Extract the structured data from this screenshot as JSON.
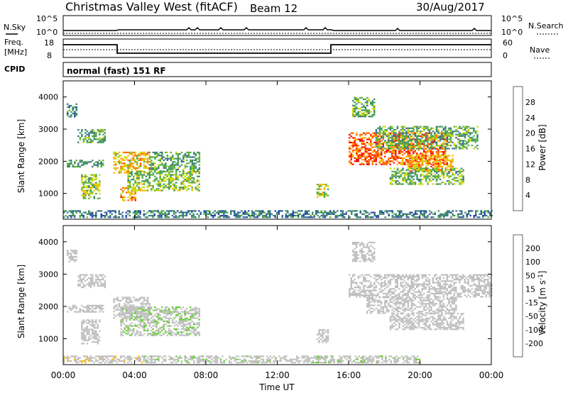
{
  "header": {
    "title": "Christmas Valley West (fitACF)",
    "beam": "Beam 12",
    "date": "30/Aug/2017"
  },
  "panels": {
    "nsky_label": "N.Sky",
    "nsky_ticks": [
      "10^5",
      "10^0"
    ],
    "nsearch_label": "N.Search",
    "nsearch_ticks": [
      "10^5",
      "10^0"
    ],
    "freq_label_1": "Freq.",
    "freq_label_2": "[MHz]",
    "freq_ticks": [
      "18",
      "8"
    ],
    "nave_label": "Nave",
    "nave_ticks": [
      "60",
      "0"
    ],
    "cpid_label": "CPID",
    "cpid_text": "normal (fast) 151 RF"
  },
  "colors": {
    "power_scale": [
      "#0000ee",
      "#2244aa",
      "#3a7090",
      "#3a9060",
      "#55b040",
      "#c8d800",
      "#ffb000",
      "#ff6000",
      "#ff1000",
      "#e00000"
    ],
    "velocity_scale": [
      "#ff0000",
      "#ff5a00",
      "#ff9e00",
      "#ffc000",
      "#c0c0c0",
      "#c0c0c0",
      "#66cc33",
      "#2a9a40",
      "#2c5fa0",
      "#1a1acc"
    ]
  },
  "chart_data": [
    {
      "type": "heatmap",
      "panel": "power",
      "ylabel": "Slant Range [km]",
      "yticks": [
        "1000",
        "2000",
        "3000",
        "4000"
      ],
      "ylim": [
        200,
        4500
      ],
      "xlim": [
        0,
        24
      ],
      "colorbar_label": "Power [dB]",
      "colorbar_ticks": [
        "4",
        "8",
        "12",
        "16",
        "20",
        "24",
        "28"
      ],
      "colorbar_range": [
        0,
        32
      ],
      "regions": [
        {
          "t": [
            0.2,
            0.7
          ],
          "r": [
            3400,
            3800
          ],
          "v": 9
        },
        {
          "t": [
            0.8,
            2.3
          ],
          "r": [
            2600,
            3000
          ],
          "v": 13
        },
        {
          "t": [
            0.2,
            2.2
          ],
          "r": [
            1850,
            2050
          ],
          "v": 11
        },
        {
          "t": [
            1.0,
            2.0
          ],
          "r": [
            850,
            1600
          ],
          "v": 16
        },
        {
          "t": [
            2.8,
            4.8
          ],
          "r": [
            1650,
            2300
          ],
          "v": 20
        },
        {
          "t": [
            3.2,
            4.0
          ],
          "r": [
            800,
            1200
          ],
          "v": 21
        },
        {
          "t": [
            3.6,
            7.6
          ],
          "r": [
            1100,
            1700
          ],
          "v": 15
        },
        {
          "t": [
            4.8,
            7.6
          ],
          "r": [
            1700,
            2300
          ],
          "v": 12
        },
        {
          "t": [
            14.2,
            14.8
          ],
          "r": [
            900,
            1300
          ],
          "v": 17
        },
        {
          "t": [
            16.2,
            17.4
          ],
          "r": [
            3400,
            4000
          ],
          "v": 14
        },
        {
          "t": [
            16.0,
            21.5
          ],
          "r": [
            1900,
            2900
          ],
          "v": 24
        },
        {
          "t": [
            17.5,
            23.2
          ],
          "r": [
            2400,
            3100
          ],
          "v": 13
        },
        {
          "t": [
            19.3,
            21.8
          ],
          "r": [
            1700,
            2200
          ],
          "v": 22
        },
        {
          "t": [
            18.3,
            22.4
          ],
          "r": [
            1300,
            1800
          ],
          "v": 14
        },
        {
          "t": [
            0.0,
            24.0
          ],
          "r": [
            250,
            480
          ],
          "v": 9
        }
      ]
    },
    {
      "type": "heatmap",
      "panel": "velocity",
      "ylabel": "Slant Range [km]",
      "yticks": [
        "1000",
        "2000",
        "3000",
        "4000"
      ],
      "ylim": [
        200,
        4500
      ],
      "xlim": [
        0,
        24
      ],
      "xlabel": "Time UT",
      "xticks": [
        "00:00",
        "04:00",
        "08:00",
        "12:00",
        "16:00",
        "20:00",
        "00:00"
      ],
      "colorbar_label": "Velocity [m s^-1]",
      "colorbar_ticks": [
        "200",
        "100",
        "50",
        "15",
        "-15",
        "-50",
        "-100",
        "-200"
      ],
      "colorbar_range": [
        -250,
        250
      ],
      "regions": [
        {
          "t": [
            0.2,
            0.7
          ],
          "r": [
            3400,
            3800
          ],
          "v": 0
        },
        {
          "t": [
            0.8,
            2.3
          ],
          "r": [
            2600,
            3000
          ],
          "v": 0
        },
        {
          "t": [
            0.2,
            2.2
          ],
          "r": [
            1850,
            2050
          ],
          "v": 0
        },
        {
          "t": [
            1.0,
            2.0
          ],
          "r": [
            850,
            1600
          ],
          "v": 0
        },
        {
          "t": [
            2.8,
            4.8
          ],
          "r": [
            1650,
            2300
          ],
          "v": 0
        },
        {
          "t": [
            3.2,
            7.6
          ],
          "r": [
            1100,
            2000
          ],
          "v": -40
        },
        {
          "t": [
            14.2,
            14.8
          ],
          "r": [
            900,
            1300
          ],
          "v": 0
        },
        {
          "t": [
            16.2,
            17.4
          ],
          "r": [
            3400,
            4000
          ],
          "v": 0
        },
        {
          "t": [
            16.0,
            24.0
          ],
          "r": [
            2300,
            3000
          ],
          "v": 0
        },
        {
          "t": [
            17.0,
            22.0
          ],
          "r": [
            1800,
            2300
          ],
          "v": 0
        },
        {
          "t": [
            18.3,
            22.4
          ],
          "r": [
            1300,
            1800
          ],
          "v": 0
        },
        {
          "t": [
            0.0,
            4.5
          ],
          "r": [
            250,
            480
          ],
          "v": 30
        },
        {
          "t": [
            4.5,
            20.0
          ],
          "r": [
            250,
            480
          ],
          "v": -30
        }
      ]
    }
  ]
}
